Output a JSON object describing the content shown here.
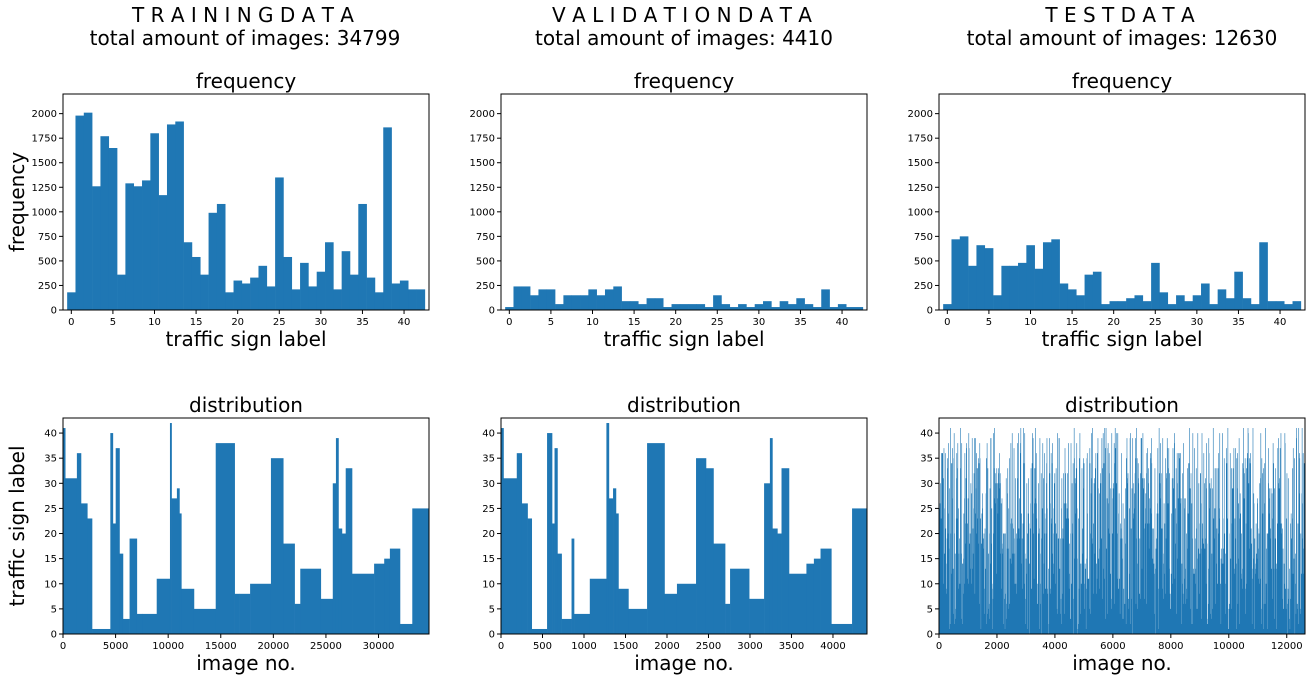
{
  "color": "#1f77b4",
  "columns": [
    {
      "name": "T R A I N I N G   D A T A",
      "total_label": "total amount of images: 34799"
    },
    {
      "name": "V A L I D A T I O N   D A T A",
      "total_label": "total amount of images: 4410"
    },
    {
      "name": "T E S T   D A T A",
      "total_label": "total amount of images: 12630"
    }
  ],
  "chart_data": [
    {
      "type": "bar",
      "id": "train-frequency",
      "title": "frequency",
      "xlabel": "traffic sign label",
      "ylabel": "frequency",
      "xlim": [
        -1,
        43
      ],
      "ylim": [
        0,
        2200
      ],
      "xticks": [
        0,
        5,
        10,
        15,
        20,
        25,
        30,
        35,
        40
      ],
      "yticks": [
        0,
        250,
        500,
        750,
        1000,
        1250,
        1500,
        1750,
        2000
      ],
      "categories": [
        0,
        1,
        2,
        3,
        4,
        5,
        6,
        7,
        8,
        9,
        10,
        11,
        12,
        13,
        14,
        15,
        16,
        17,
        18,
        19,
        20,
        21,
        22,
        23,
        24,
        25,
        26,
        27,
        28,
        29,
        30,
        31,
        32,
        33,
        34,
        35,
        36,
        37,
        38,
        39,
        40,
        41,
        42
      ],
      "values": [
        180,
        1980,
        2010,
        1260,
        1770,
        1650,
        360,
        1290,
        1260,
        1320,
        1800,
        1170,
        1890,
        1920,
        690,
        540,
        360,
        990,
        1080,
        180,
        300,
        270,
        330,
        450,
        240,
        1350,
        540,
        210,
        480,
        240,
        390,
        690,
        210,
        599,
        360,
        1080,
        330,
        180,
        1860,
        270,
        300,
        210,
        210
      ]
    },
    {
      "type": "bar",
      "id": "val-frequency",
      "title": "frequency",
      "xlabel": "traffic sign label",
      "ylabel": "",
      "xlim": [
        -1,
        43
      ],
      "ylim": [
        0,
        2200
      ],
      "xticks": [
        0,
        5,
        10,
        15,
        20,
        25,
        30,
        35,
        40
      ],
      "yticks": [
        0,
        250,
        500,
        750,
        1000,
        1250,
        1500,
        1750,
        2000
      ],
      "categories": [
        0,
        1,
        2,
        3,
        4,
        5,
        6,
        7,
        8,
        9,
        10,
        11,
        12,
        13,
        14,
        15,
        16,
        17,
        18,
        19,
        20,
        21,
        22,
        23,
        24,
        25,
        26,
        27,
        28,
        29,
        30,
        31,
        32,
        33,
        34,
        35,
        36,
        37,
        38,
        39,
        40,
        41,
        42
      ],
      "values": [
        30,
        240,
        240,
        150,
        210,
        210,
        60,
        150,
        150,
        150,
        210,
        150,
        210,
        240,
        90,
        90,
        60,
        120,
        120,
        30,
        60,
        60,
        60,
        60,
        30,
        150,
        60,
        30,
        60,
        30,
        60,
        90,
        30,
        90,
        60,
        120,
        60,
        30,
        210,
        30,
        60,
        30,
        30
      ]
    },
    {
      "type": "bar",
      "id": "test-frequency",
      "title": "frequency",
      "xlabel": "traffic sign label",
      "ylabel": "",
      "xlim": [
        -1,
        43
      ],
      "ylim": [
        0,
        2200
      ],
      "xticks": [
        0,
        5,
        10,
        15,
        20,
        25,
        30,
        35,
        40
      ],
      "yticks": [
        0,
        250,
        500,
        750,
        1000,
        1250,
        1500,
        1750,
        2000
      ],
      "categories": [
        0,
        1,
        2,
        3,
        4,
        5,
        6,
        7,
        8,
        9,
        10,
        11,
        12,
        13,
        14,
        15,
        16,
        17,
        18,
        19,
        20,
        21,
        22,
        23,
        24,
        25,
        26,
        27,
        28,
        29,
        30,
        31,
        32,
        33,
        34,
        35,
        36,
        37,
        38,
        39,
        40,
        41,
        42
      ],
      "values": [
        60,
        720,
        750,
        450,
        660,
        630,
        150,
        450,
        450,
        480,
        660,
        420,
        690,
        720,
        270,
        210,
        150,
        360,
        390,
        60,
        90,
        90,
        120,
        150,
        90,
        480,
        180,
        60,
        150,
        90,
        150,
        270,
        60,
        210,
        120,
        390,
        120,
        60,
        690,
        90,
        90,
        60,
        90
      ]
    },
    {
      "type": "area",
      "id": "train-distribution",
      "title": "distribution",
      "xlabel": "image no.",
      "ylabel": "traffic sign label",
      "xlim": [
        0,
        34799
      ],
      "ylim": [
        0,
        43
      ],
      "xticks": [
        0,
        5000,
        10000,
        15000,
        20000,
        25000,
        30000
      ],
      "yticks": [
        0,
        5,
        10,
        15,
        20,
        25,
        30,
        35,
        40
      ],
      "segments": [
        [
          0,
          210,
          41
        ],
        [
          210,
          1320,
          31
        ],
        [
          1320,
          1710,
          36
        ],
        [
          1710,
          2310,
          26
        ],
        [
          2310,
          2760,
          23
        ],
        [
          2760,
          4500,
          1
        ],
        [
          4500,
          4740,
          40
        ],
        [
          4740,
          5010,
          22
        ],
        [
          5010,
          5370,
          37
        ],
        [
          5370,
          5700,
          16
        ],
        [
          5700,
          6330,
          3
        ],
        [
          6330,
          7020,
          19
        ],
        [
          7020,
          7530,
          4
        ],
        [
          7530,
          8910,
          4
        ],
        [
          8910,
          10170,
          11
        ],
        [
          10170,
          10320,
          42
        ],
        [
          10320,
          10830,
          27
        ],
        [
          10830,
          11070,
          29
        ],
        [
          11070,
          11250,
          24
        ],
        [
          11250,
          12450,
          9
        ],
        [
          12450,
          14520,
          5
        ],
        [
          14520,
          16320,
          38
        ],
        [
          16320,
          16740,
          8
        ],
        [
          16740,
          17790,
          8
        ],
        [
          17790,
          19770,
          10
        ],
        [
          19770,
          20940,
          35
        ],
        [
          20940,
          22020,
          18
        ],
        [
          22020,
          22560,
          6
        ],
        [
          22560,
          24510,
          13
        ],
        [
          24510,
          25650,
          7
        ],
        [
          25650,
          25950,
          30
        ],
        [
          25950,
          26190,
          39
        ],
        [
          26190,
          26520,
          21
        ],
        [
          26520,
          26880,
          20
        ],
        [
          26880,
          27480,
          33
        ],
        [
          27480,
          29580,
          12
        ],
        [
          29580,
          30540,
          14
        ],
        [
          30540,
          31080,
          15
        ],
        [
          31080,
          32040,
          17
        ],
        [
          32040,
          33210,
          2
        ],
        [
          33210,
          34799,
          25
        ]
      ]
    },
    {
      "type": "area",
      "id": "val-distribution",
      "title": "distribution",
      "xlabel": "image no.",
      "ylabel": "",
      "xlim": [
        0,
        4410
      ],
      "ylim": [
        0,
        43
      ],
      "xticks": [
        0,
        500,
        1000,
        1500,
        2000,
        2500,
        3000,
        3500,
        4000
      ],
      "yticks": [
        0,
        5,
        10,
        15,
        20,
        25,
        30,
        35,
        40
      ],
      "segments": [
        [
          0,
          30,
          41
        ],
        [
          30,
          190,
          31
        ],
        [
          190,
          250,
          36
        ],
        [
          250,
          320,
          26
        ],
        [
          320,
          370,
          23
        ],
        [
          370,
          555,
          1
        ],
        [
          555,
          615,
          40
        ],
        [
          615,
          645,
          22
        ],
        [
          645,
          680,
          37
        ],
        [
          680,
          730,
          16
        ],
        [
          730,
          850,
          3
        ],
        [
          850,
          880,
          19
        ],
        [
          880,
          1070,
          4
        ],
        [
          1070,
          1270,
          11
        ],
        [
          1270,
          1300,
          42
        ],
        [
          1300,
          1350,
          27
        ],
        [
          1350,
          1385,
          29
        ],
        [
          1385,
          1415,
          24
        ],
        [
          1415,
          1535,
          9
        ],
        [
          1535,
          1760,
          5
        ],
        [
          1760,
          1970,
          38
        ],
        [
          1970,
          2120,
          8
        ],
        [
          2120,
          2350,
          10
        ],
        [
          2350,
          2470,
          35
        ],
        [
          2470,
          2560,
          33
        ],
        [
          2560,
          2700,
          18
        ],
        [
          2700,
          2760,
          6
        ],
        [
          2760,
          2990,
          13
        ],
        [
          2990,
          3170,
          7
        ],
        [
          3170,
          3240,
          30
        ],
        [
          3240,
          3270,
          39
        ],
        [
          3270,
          3330,
          21
        ],
        [
          3330,
          3380,
          20
        ],
        [
          3380,
          3470,
          33
        ],
        [
          3470,
          3680,
          12
        ],
        [
          3680,
          3770,
          14
        ],
        [
          3770,
          3850,
          15
        ],
        [
          3850,
          3980,
          17
        ],
        [
          3980,
          4230,
          2
        ],
        [
          4230,
          4410,
          25
        ]
      ]
    },
    {
      "type": "line",
      "id": "test-distribution",
      "title": "distribution",
      "xlabel": "image no.",
      "ylabel": "",
      "xlim": [
        0,
        12630
      ],
      "ylim": [
        0,
        43
      ],
      "xticks": [
        0,
        2000,
        4000,
        6000,
        8000,
        10000,
        12000
      ],
      "yticks": [
        0,
        5,
        10,
        15,
        20,
        25,
        30,
        35,
        40
      ],
      "note_values": "per-image labels shuffled 0-42, drawn as dense vertical lines",
      "sample_seed": 7
    }
  ]
}
